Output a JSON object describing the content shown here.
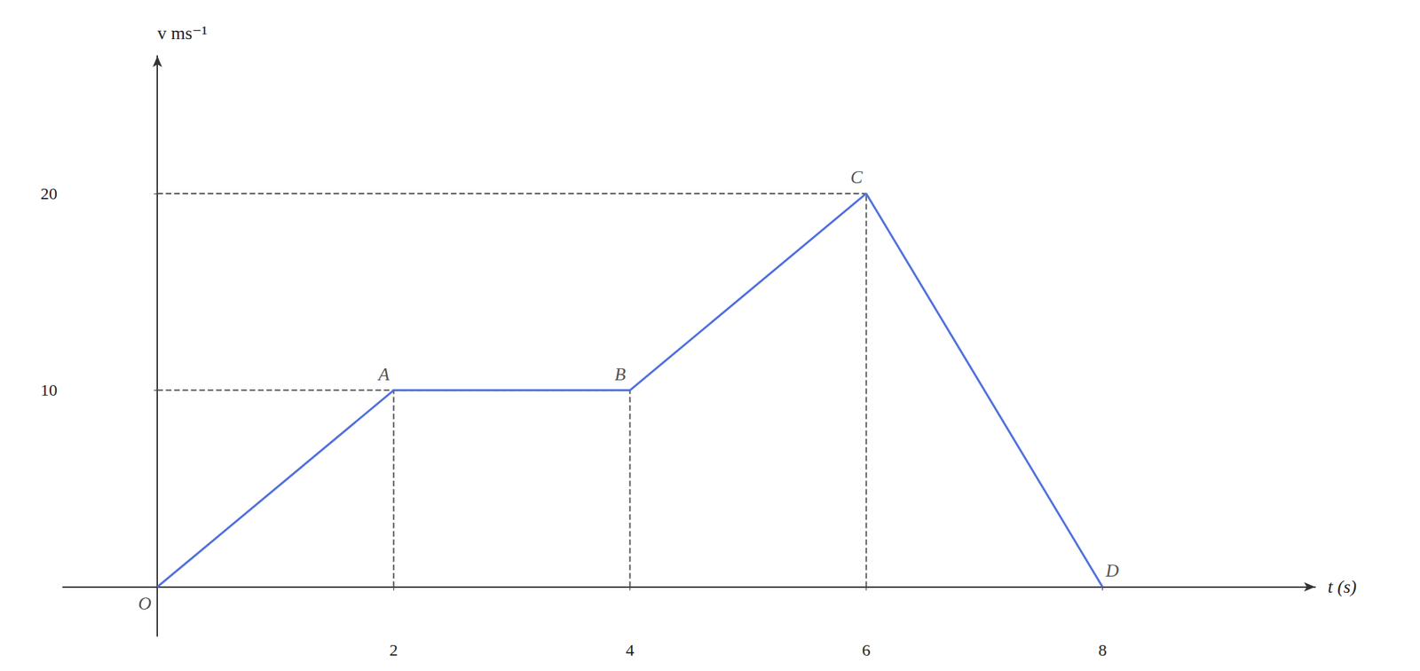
{
  "chart_data": {
    "type": "line",
    "x": [
      0,
      2,
      4,
      6,
      8
    ],
    "values": [
      0,
      10,
      10,
      20,
      0
    ],
    "xlabel": "t (s)",
    "ylabel": "v ms⁻¹",
    "xlim": [
      -0.8,
      9.8
    ],
    "ylim": [
      -2.5,
      27
    ],
    "xticks": [
      2,
      4,
      6,
      8
    ],
    "yticks": [
      10,
      20
    ],
    "grid": false,
    "annotations": [
      {
        "text": "O",
        "x": 0,
        "y": 0
      },
      {
        "text": "A",
        "x": 2,
        "y": 10
      },
      {
        "text": "B",
        "x": 4,
        "y": 10
      },
      {
        "text": "C",
        "x": 6,
        "y": 20
      },
      {
        "text": "D",
        "x": 8,
        "y": 0
      }
    ],
    "dashed_lines": [
      {
        "x": [
          2,
          2
        ],
        "y": [
          0,
          10
        ]
      },
      {
        "x": [
          4,
          4
        ],
        "y": [
          0,
          10
        ]
      },
      {
        "x": [
          6,
          6
        ],
        "y": [
          0,
          20
        ]
      },
      {
        "x": [
          0,
          4
        ],
        "y": [
          10,
          10
        ]
      },
      {
        "x": [
          0,
          6
        ],
        "y": [
          20,
          20
        ]
      }
    ]
  }
}
